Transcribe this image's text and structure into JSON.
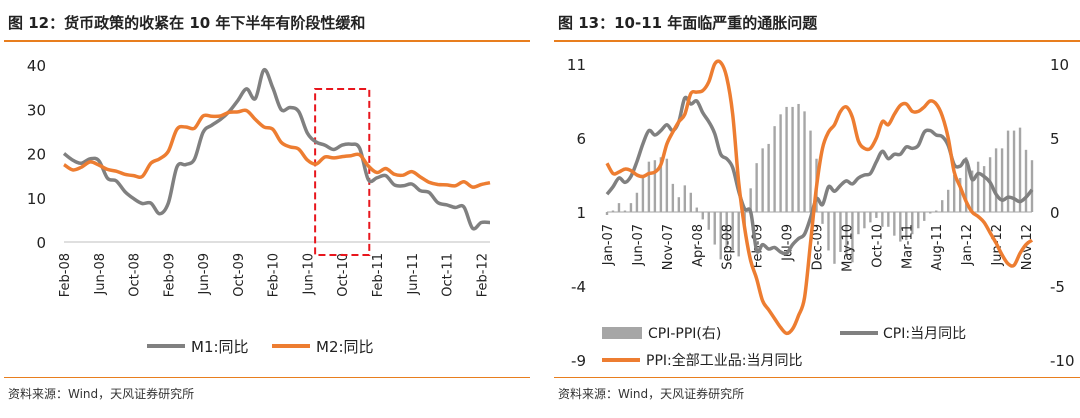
{
  "left": {
    "title": "图 12：货币政策的收紧在 10 年下半年有阶段性缓和",
    "source": "资料来源：Wind，天风证券研究所"
  },
  "right": {
    "title": "图 13：10-11 年面临严重的通胀问题",
    "source": "资料来源：Wind，天风证券研究所"
  },
  "colors": {
    "orange": "#ed7d31",
    "gray": "#808080",
    "bar": "#a6a6a6",
    "dashed_box": "#e8161d",
    "accent_rule": "#e87e1e"
  },
  "chart_data": [
    {
      "type": "line",
      "title": "",
      "xlabel": "",
      "ylabel": "",
      "ylim": [
        0,
        40
      ],
      "yticks": [
        "0",
        "10",
        "20",
        "30",
        "40"
      ],
      "x_tick_labels": [
        "Feb-08",
        "Jun-08",
        "Oct-08",
        "Feb-09",
        "Jun-09",
        "Oct-09",
        "Feb-10",
        "Jun-10",
        "Oct-10",
        "Feb-11",
        "Jun-11",
        "Oct-11",
        "Feb-12"
      ],
      "x": [
        "2008-02",
        "2008-03",
        "2008-04",
        "2008-05",
        "2008-06",
        "2008-07",
        "2008-08",
        "2008-09",
        "2008-10",
        "2008-11",
        "2008-12",
        "2009-01",
        "2009-02",
        "2009-03",
        "2009-04",
        "2009-05",
        "2009-06",
        "2009-07",
        "2009-08",
        "2009-09",
        "2009-10",
        "2009-11",
        "2009-12",
        "2010-01",
        "2010-02",
        "2010-03",
        "2010-04",
        "2010-05",
        "2010-06",
        "2010-07",
        "2010-08",
        "2010-09",
        "2010-10",
        "2010-11",
        "2010-12",
        "2011-01",
        "2011-02",
        "2011-03",
        "2011-04",
        "2011-05",
        "2011-06",
        "2011-07",
        "2011-08",
        "2011-09",
        "2011-10",
        "2011-11",
        "2011-12",
        "2012-01",
        "2012-02",
        "2012-03"
      ],
      "series": [
        {
          "name": "M1:同比",
          "color": "#808080",
          "values": [
            20,
            18.5,
            17.8,
            18.8,
            18.4,
            14.4,
            13.8,
            11.4,
            9.8,
            8.7,
            8.8,
            6.4,
            8.8,
            17.0,
            17.5,
            18.7,
            24.8,
            26.4,
            27.7,
            29.5,
            32.0,
            34.6,
            32.4,
            38.9,
            34.9,
            29.9,
            30.4,
            29.5,
            24.6,
            22.6,
            21.9,
            20.9,
            21.9,
            22.1,
            21.2,
            14.1,
            14.5,
            15.0,
            12.9,
            12.7,
            13.1,
            11.6,
            11.2,
            8.9,
            8.4,
            7.8,
            7.9,
            3.1,
            4.4,
            4.4
          ]
        },
        {
          "name": "M2:同比",
          "color": "#ed7d31",
          "values": [
            17.5,
            16.3,
            16.9,
            18.1,
            17.4,
            16.4,
            16.0,
            15.3,
            15.0,
            14.8,
            17.8,
            18.8,
            20.5,
            25.5,
            26.0,
            25.7,
            28.5,
            28.4,
            28.5,
            29.3,
            29.4,
            29.7,
            27.7,
            26.0,
            25.5,
            22.5,
            21.5,
            21.0,
            18.5,
            17.6,
            19.2,
            19.0,
            19.3,
            19.5,
            19.7,
            17.2,
            15.7,
            16.6,
            15.3,
            15.1,
            15.9,
            14.7,
            13.5,
            13.0,
            12.9,
            12.7,
            13.6,
            12.4,
            13.0,
            13.4
          ]
        }
      ],
      "highlight_box": {
        "from": "2010-07",
        "to": "2011-01"
      },
      "legend_position": "bottom",
      "grid": false
    },
    {
      "type": "line",
      "title": "",
      "xlabel": "",
      "ylabel": "",
      "ylim_left": [
        -9,
        11
      ],
      "yticks_left": [
        "-9",
        "-4",
        "1",
        "6",
        "11"
      ],
      "ylim_right": [
        -10,
        10
      ],
      "yticks_right": [
        "-10",
        "-5",
        "0",
        "5",
        "10"
      ],
      "x_tick_labels": [
        "Jan-07",
        "Jun-07",
        "Nov-07",
        "Apr-08",
        "Sep-08",
        "Feb-09",
        "Jul-09",
        "Dec-09",
        "May-10",
        "Oct-10",
        "Mar-11",
        "Aug-11",
        "Jan-12",
        "Jun-12",
        "Nov-12"
      ],
      "x": [
        "2007-01",
        "2007-02",
        "2007-03",
        "2007-04",
        "2007-05",
        "2007-06",
        "2007-07",
        "2007-08",
        "2007-09",
        "2007-10",
        "2007-11",
        "2007-12",
        "2008-01",
        "2008-02",
        "2008-03",
        "2008-04",
        "2008-05",
        "2008-06",
        "2008-07",
        "2008-08",
        "2008-09",
        "2008-10",
        "2008-11",
        "2008-12",
        "2009-01",
        "2009-02",
        "2009-03",
        "2009-04",
        "2009-05",
        "2009-06",
        "2009-07",
        "2009-08",
        "2009-09",
        "2009-10",
        "2009-11",
        "2009-12",
        "2010-01",
        "2010-02",
        "2010-03",
        "2010-04",
        "2010-05",
        "2010-06",
        "2010-07",
        "2010-08",
        "2010-09",
        "2010-10",
        "2010-11",
        "2010-12",
        "2011-01",
        "2011-02",
        "2011-03",
        "2011-04",
        "2011-05",
        "2011-06",
        "2011-07",
        "2011-08",
        "2011-09",
        "2011-10",
        "2011-11",
        "2011-12",
        "2012-01",
        "2012-02",
        "2012-03",
        "2012-04",
        "2012-05",
        "2012-06",
        "2012-07",
        "2012-08",
        "2012-09",
        "2012-10",
        "2012-11",
        "2012-12"
      ],
      "series": [
        {
          "name": "CPI-PPI(右)",
          "color": "#a6a6a6",
          "axis": "right",
          "kind": "bar",
          "values": [
            -0.2,
            0.1,
            0.6,
            0.1,
            0.6,
            1.3,
            2.4,
            3.4,
            3.5,
            3.7,
            3.6,
            1.9,
            1.0,
            1.8,
            1.3,
            0.3,
            -0.5,
            -1.2,
            -2.2,
            -3.2,
            -2.5,
            -2.6,
            -3.0,
            -1.0,
            1.6,
            3.3,
            4.3,
            4.6,
            5.8,
            6.6,
            7.1,
            7.1,
            7.3,
            6.8,
            5.5,
            3.6,
            -0.8,
            -2.6,
            -3.5,
            -2.7,
            -3.0,
            -3.4,
            -1.5,
            -1.1,
            -0.7,
            -0.4,
            -1.0,
            -1.0,
            -1.6,
            -2.0,
            -1.9,
            -1.5,
            -1.1,
            -0.6,
            -0.1,
            0.1,
            0.8,
            1.5,
            2.5,
            2.3,
            3.7,
            2.8,
            3.4,
            3.1,
            3.7,
            4.3,
            4.3,
            5.5,
            5.5,
            5.7,
            4.2,
            3.5
          ]
        },
        {
          "name": "CPI:当月同比",
          "color": "#808080",
          "axis": "left",
          "kind": "line",
          "values": [
            2.2,
            2.7,
            3.3,
            3.0,
            3.4,
            4.4,
            5.6,
            6.5,
            6.2,
            6.5,
            6.9,
            6.5,
            7.1,
            8.7,
            8.3,
            8.5,
            7.7,
            7.1,
            6.3,
            4.9,
            4.6,
            4.0,
            2.4,
            1.2,
            1.0,
            -1.6,
            -1.2,
            -1.5,
            -1.4,
            -1.7,
            -1.8,
            -1.2,
            -0.8,
            -0.5,
            0.6,
            1.9,
            1.5,
            2.7,
            2.4,
            2.8,
            3.1,
            2.9,
            3.3,
            3.5,
            3.6,
            4.4,
            5.1,
            4.6,
            4.9,
            4.9,
            5.4,
            5.3,
            5.5,
            6.4,
            6.5,
            6.2,
            6.1,
            5.5,
            4.2,
            4.1,
            4.5,
            3.2,
            3.6,
            3.4,
            3.0,
            2.2,
            1.8,
            2.0,
            1.9,
            1.7,
            2.0,
            2.5
          ]
        },
        {
          "name": "PPI:全部工业品:当月同比",
          "color": "#ed7d31",
          "axis": "right",
          "kind": "line",
          "values": [
            3.3,
            2.6,
            2.7,
            2.9,
            2.8,
            2.5,
            2.4,
            2.6,
            2.7,
            3.2,
            4.6,
            5.4,
            6.1,
            6.6,
            8.0,
            8.1,
            8.2,
            8.8,
            10.0,
            10.1,
            9.1,
            6.6,
            2.0,
            -1.1,
            -3.3,
            -4.5,
            -6.0,
            -6.6,
            -7.2,
            -7.8,
            -8.2,
            -7.9,
            -7.0,
            -5.8,
            -2.1,
            1.7,
            4.3,
            5.4,
            5.9,
            6.8,
            7.1,
            6.4,
            4.8,
            4.3,
            4.3,
            5.0,
            6.1,
            5.9,
            6.6,
            7.2,
            7.3,
            6.8,
            6.8,
            7.1,
            7.5,
            7.3,
            6.5,
            5.0,
            2.7,
            1.7,
            0.7,
            0.0,
            -0.3,
            -0.7,
            -1.4,
            -2.1,
            -2.9,
            -3.5,
            -3.6,
            -2.8,
            -2.2,
            -1.9
          ]
        }
      ],
      "legend_position": "bottom",
      "grid": false
    }
  ]
}
